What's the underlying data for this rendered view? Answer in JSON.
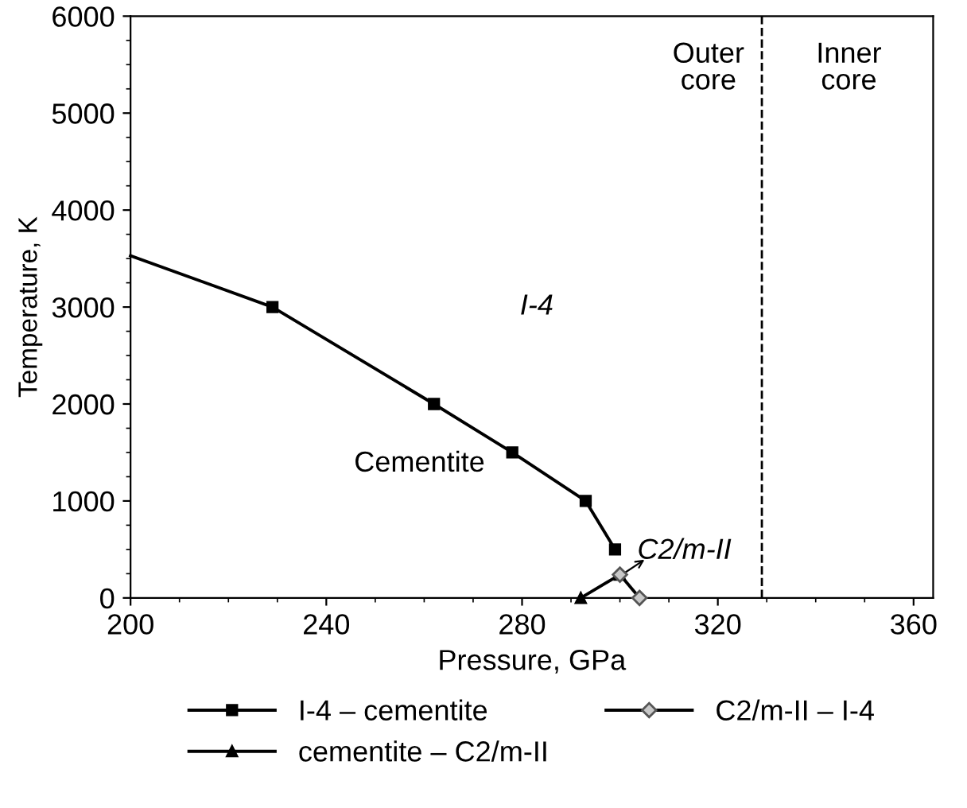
{
  "chart_data": {
    "type": "line",
    "xlabel": "Pressure, GPa",
    "ylabel": "Temperature, K",
    "series": [
      {
        "name": "I-4 – cementite",
        "color": "#000000",
        "marker": "square",
        "x": [
          200,
          229,
          262,
          278,
          293,
          299
        ],
        "values": [
          3530,
          3000,
          2000,
          1500,
          1000,
          500
        ]
      },
      {
        "name": "cementite – C2/m-II",
        "color": "#000000",
        "marker": "triangle",
        "x": [
          292,
          300
        ],
        "values": [
          0,
          240
        ]
      },
      {
        "name": "C2/m-II – I-4",
        "color": "#c8c8c8",
        "marker": "diamond",
        "x": [
          300,
          304
        ],
        "values": [
          240,
          0
        ]
      }
    ],
    "xlim": [
      200,
      364
    ],
    "xticks": [
      200,
      240,
      280,
      320,
      360
    ],
    "ylim": [
      0,
      6000
    ],
    "yticks": [
      0,
      1000,
      2000,
      3000,
      4000,
      5000,
      6000
    ],
    "ref_lines": [
      {
        "axis": "x",
        "value": 329,
        "line_style": "dashed",
        "color": "#000000"
      }
    ],
    "annotations": [
      "Outer\ncore",
      "Inner\ncore",
      "I-4",
      "Cementite",
      "C2/m-II"
    ],
    "grid": false,
    "legend": "bottom",
    "line_style": "solid"
  }
}
